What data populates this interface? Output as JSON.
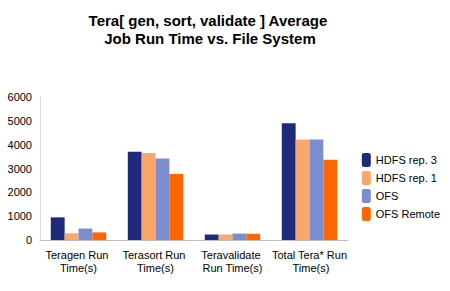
{
  "chart_data": {
    "type": "bar",
    "title": "Tera[ gen, sort, validate ] Average Job Run Time vs. File System",
    "categories": [
      "Teragen Run Time(s)",
      "Terasort Run Time(s)",
      "Teravalidate Run Time(s)",
      "Total Tera* Run Time(s)"
    ],
    "series": [
      {
        "name": "HDFS rep. 3",
        "color": "#1f2a7a",
        "values": [
          950,
          3700,
          230,
          4900
        ]
      },
      {
        "name": "HDFS rep. 1",
        "color": "#f9a76b",
        "values": [
          280,
          3650,
          230,
          4220
        ]
      },
      {
        "name": "OFS",
        "color": "#7b8ccf",
        "values": [
          480,
          3420,
          270,
          4220
        ]
      },
      {
        "name": "OFS Remote",
        "color": "#ff6600",
        "values": [
          320,
          2770,
          260,
          3370
        ]
      }
    ],
    "ylim": [
      0,
      6000
    ],
    "yticks": [
      0,
      1000,
      2000,
      3000,
      4000,
      5000,
      6000
    ],
    "grid": false,
    "legend": "right"
  }
}
